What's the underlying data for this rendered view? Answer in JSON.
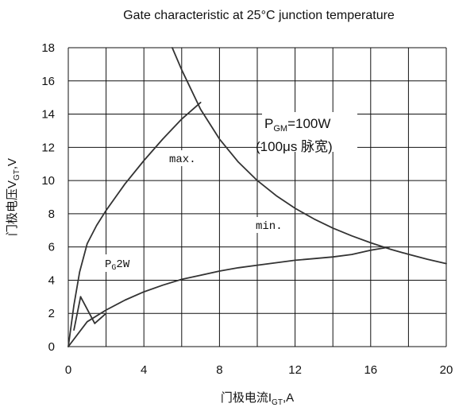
{
  "chart_data": {
    "type": "line",
    "title": "Gate characteristic at 25°C junction temperature",
    "xlabel": "门极电流I",
    "xlabel_sub": "GT",
    "xlabel_unit": ",A",
    "ylabel": "门极电压V",
    "ylabel_sub": "GT",
    "ylabel_unit": ",V",
    "xlim": [
      0,
      20
    ],
    "ylim": [
      0,
      18
    ],
    "x_ticks": [
      "0",
      "4",
      "8",
      "12",
      "16",
      "20"
    ],
    "y_ticks": [
      "0",
      "2",
      "4",
      "6",
      "8",
      "10",
      "12",
      "14",
      "16",
      "18"
    ],
    "grid": true,
    "series": [
      {
        "x": [
          0,
          0.3,
          0.6,
          1,
          1.5,
          2,
          2.5,
          3,
          4,
          5,
          6,
          7
        ],
        "y": [
          0,
          2.5,
          4.5,
          6.2,
          7.3,
          8.2,
          9,
          9.8,
          11.2,
          12.5,
          13.7,
          14.7
        ]
      },
      {
        "x": [
          0,
          1,
          2,
          3,
          4,
          5,
          6,
          7,
          8,
          9,
          10,
          11,
          12,
          13,
          14,
          15,
          16,
          17
        ],
        "y": [
          0,
          1.5,
          2.2,
          2.8,
          3.3,
          3.7,
          4.05,
          4.3,
          4.55,
          4.75,
          4.9,
          5.05,
          5.2,
          5.3,
          5.4,
          5.55,
          5.8,
          6.0
        ]
      },
      {
        "x": [
          0.65,
          1.4
        ],
        "y": [
          3.0,
          1.4
        ]
      },
      {
        "x": [
          0.3,
          0.65
        ],
        "y": [
          1.0,
          3.0
        ]
      },
      {
        "x": [
          1.4,
          2.0
        ],
        "y": [
          1.4,
          2.0
        ]
      },
      {
        "x": [
          5.5,
          6,
          7,
          8,
          9,
          10,
          11,
          12,
          13,
          14,
          15,
          16,
          17,
          18,
          19,
          20
        ],
        "y": [
          18.18,
          16.67,
          14.29,
          12.5,
          11.11,
          10.0,
          9.09,
          8.33,
          7.69,
          7.14,
          6.67,
          6.25,
          5.88,
          5.56,
          5.26,
          5.0
        ]
      }
    ],
    "annotations": {
      "pgm_main": "P",
      "pgm_sub": "GM",
      "pgm_rest": "=100W",
      "pgm_note": "(100μs 脉宽)",
      "max_label": "max.",
      "min_label": "min.",
      "pg_main": "P",
      "pg_sub": "G",
      "pg_rest": "2W"
    }
  }
}
